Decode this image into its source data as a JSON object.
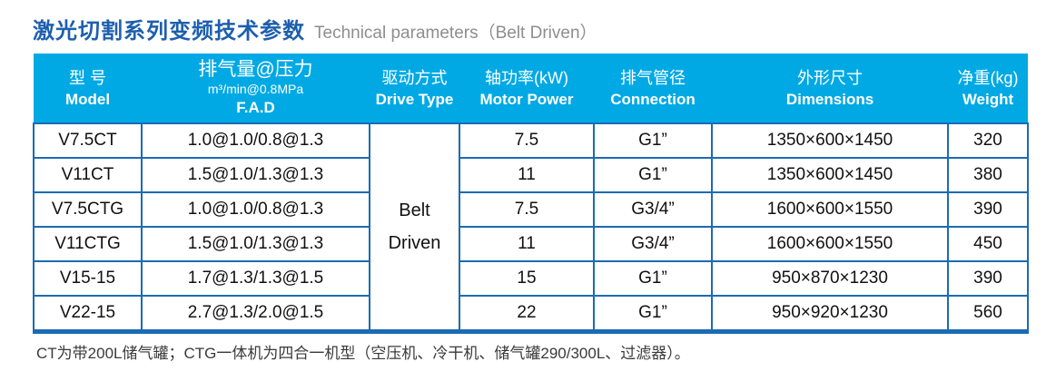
{
  "page": {
    "title_zh": "激光切割系列变频技术参数",
    "title_en": "Technical parameters（Belt Driven）",
    "footnote": "CT为带200L储气罐；CTG一体机为四合一机型（空压机、冷干机、储气罐290/300L、过滤器）。"
  },
  "colors": {
    "header_bg": "#00a9e4",
    "table_border": "#1b6bb4",
    "title_blue": "#1d5fae",
    "title_gray": "#8e8e8e"
  },
  "table": {
    "columns": [
      {
        "zh": "型 号",
        "en": "Model"
      },
      {
        "zh": "排气量@压力",
        "sub": "m³/min@0.8MPa",
        "en": "F.A.D"
      },
      {
        "zh": "驱动方式",
        "en": "Drive Type"
      },
      {
        "zh": "轴功率(kW)",
        "en": "Motor Power"
      },
      {
        "zh": "排气管径",
        "en": "Connection"
      },
      {
        "zh": "外形尺寸",
        "en": "Dimensions"
      },
      {
        "zh": "净重(kg)",
        "en": "Weight"
      }
    ],
    "drive_type_lines": [
      "Belt",
      "Driven"
    ],
    "rows": [
      {
        "model": "V7.5CT",
        "fad": "1.0@1.0/0.8@1.3",
        "power": "7.5",
        "connection": "G1”",
        "dimensions": "1350×600×1450",
        "weight": "320"
      },
      {
        "model": "V11CT",
        "fad": "1.5@1.0/1.3@1.3",
        "power": "11",
        "connection": "G1”",
        "dimensions": "1350×600×1450",
        "weight": "380"
      },
      {
        "model": "V7.5CTG",
        "fad": "1.0@1.0/0.8@1.3",
        "power": "7.5",
        "connection": "G3/4”",
        "dimensions": "1600×600×1550",
        "weight": "390"
      },
      {
        "model": "V11CTG",
        "fad": "1.5@1.0/1.3@1.3",
        "power": "11",
        "connection": "G3/4”",
        "dimensions": "1600×600×1550",
        "weight": "450"
      },
      {
        "model": "V15-15",
        "fad": "1.7@1.3/1.3@1.5",
        "power": "15",
        "connection": "G1”",
        "dimensions": "950×870×1230",
        "weight": "390"
      },
      {
        "model": "V22-15",
        "fad": "2.7@1.3/2.0@1.5",
        "power": "22",
        "connection": "G1”",
        "dimensions": "950×920×1230",
        "weight": "560"
      }
    ]
  }
}
